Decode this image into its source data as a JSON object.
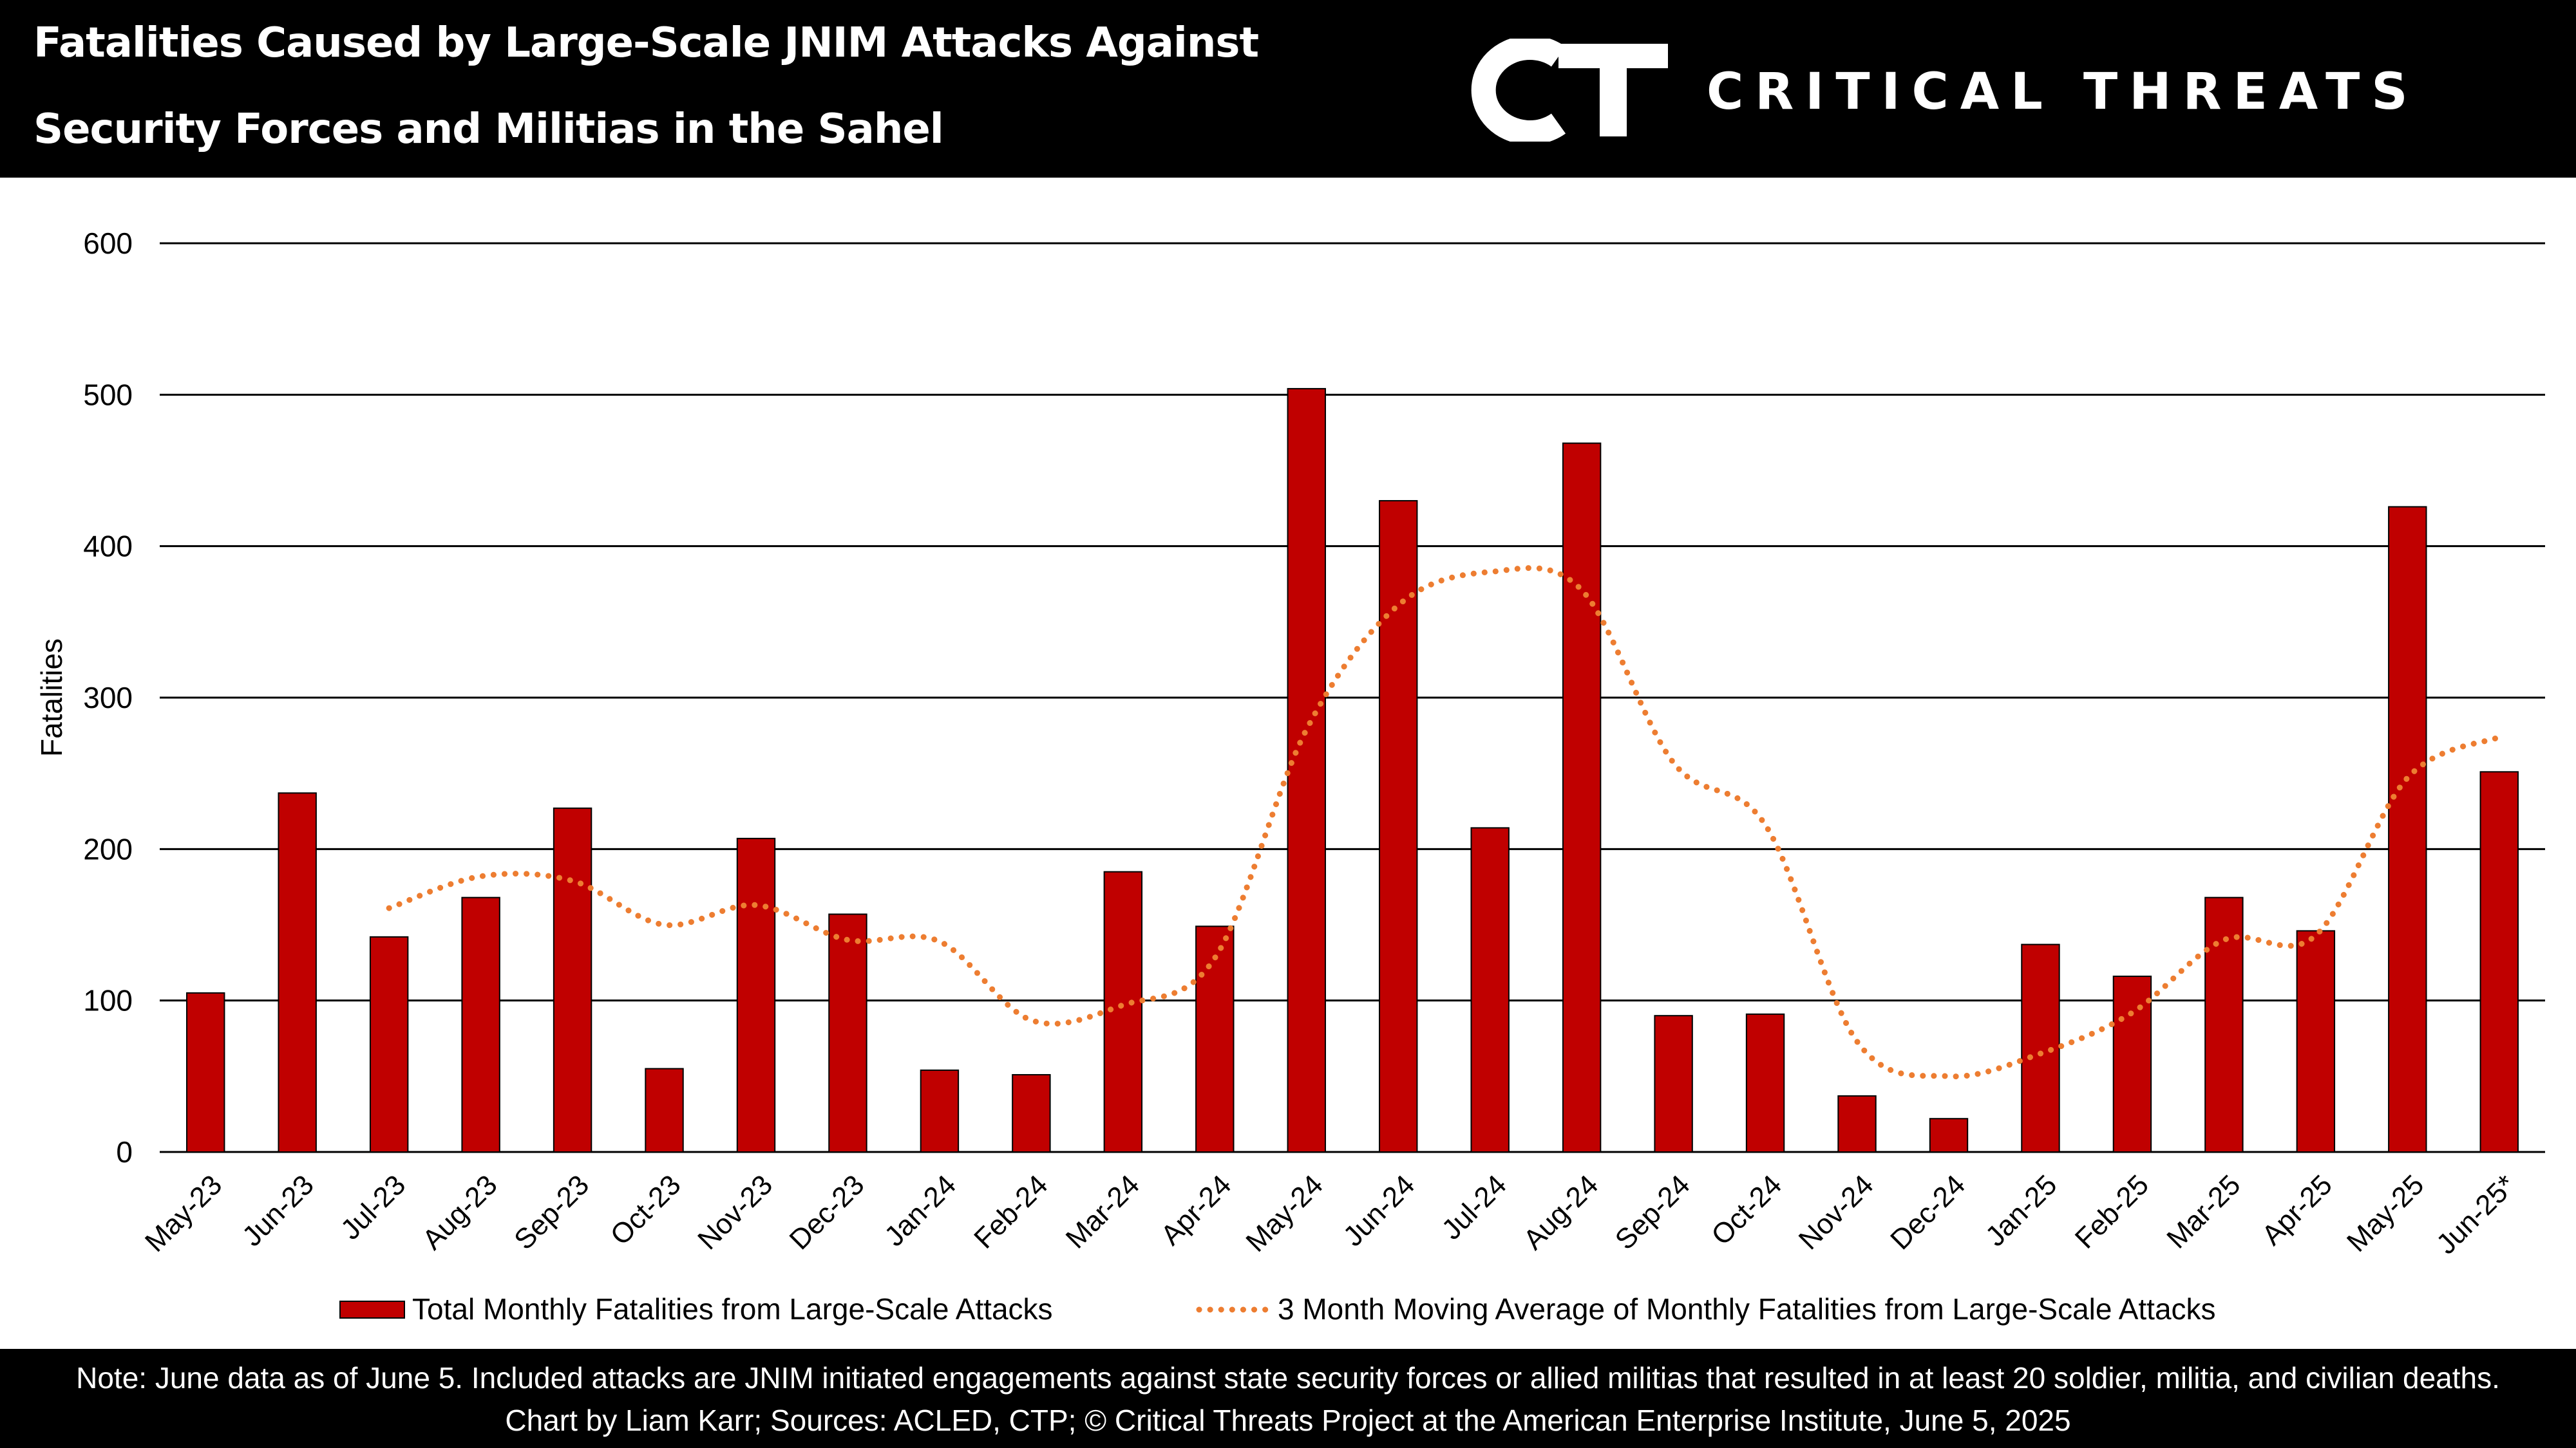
{
  "header": {
    "title_line_1": "Fatalities Caused by Large-Scale JNIM Attacks Against",
    "title_line_2": "Security Forces and Militias in the Sahel",
    "logo_mark": "CT",
    "logo_text": "CRITICAL THREATS"
  },
  "footer": {
    "note": "Note: June data as of June 5. Included attacks are JNIM initiated engagements against state security forces or allied militias that resulted in at least 20 soldier, militia, and civilian deaths.",
    "credit": "Chart by Liam Karr; Sources: ACLED, CTP; © Critical Threats Project at the American Enterprise Institute, June 5, 2025"
  },
  "colors": {
    "bar": "#c00000",
    "moving_average": "#ed7d31",
    "header_background": "#000000",
    "grid": "#000000"
  },
  "chart_data": {
    "type": "bar",
    "title": "Fatalities Caused by Large-Scale JNIM Attacks Against Security Forces and Militias in the Sahel",
    "ylabel": "Fatalities",
    "xlabel": "",
    "ylim": [
      0,
      600
    ],
    "yticks": [
      0,
      100,
      200,
      300,
      400,
      500,
      600
    ],
    "grid": true,
    "legend_position": "bottom",
    "categories": [
      "May-23",
      "Jun-23",
      "Jul-23",
      "Aug-23",
      "Sep-23",
      "Oct-23",
      "Nov-23",
      "Dec-23",
      "Jan-24",
      "Feb-24",
      "Mar-24",
      "Apr-24",
      "May-24",
      "Jun-24",
      "Jul-24",
      "Aug-24",
      "Sep-24",
      "Oct-24",
      "Nov-24",
      "Dec-24",
      "Jan-25",
      "Feb-25",
      "Mar-25",
      "Apr-25",
      "May-25",
      "Jun-25*"
    ],
    "series": [
      {
        "name": "Total Monthly Fatalities from Large-Scale Attacks",
        "type": "bar",
        "values": [
          105,
          237,
          142,
          168,
          227,
          55,
          207,
          157,
          54,
          51,
          185,
          149,
          504,
          430,
          214,
          468,
          90,
          91,
          37,
          22,
          137,
          116,
          168,
          146,
          426,
          251
        ]
      },
      {
        "name": "3 Month Moving Average of Monthly Fatalities from Large-Scale Attacks",
        "type": "line",
        "style": "dotted",
        "values": [
          null,
          null,
          161,
          182,
          179,
          150,
          163,
          140,
          139,
          87,
          97,
          128,
          279,
          361,
          383,
          371,
          257,
          216,
          73,
          50,
          65,
          92,
          140,
          143,
          247,
          274
        ]
      }
    ]
  }
}
